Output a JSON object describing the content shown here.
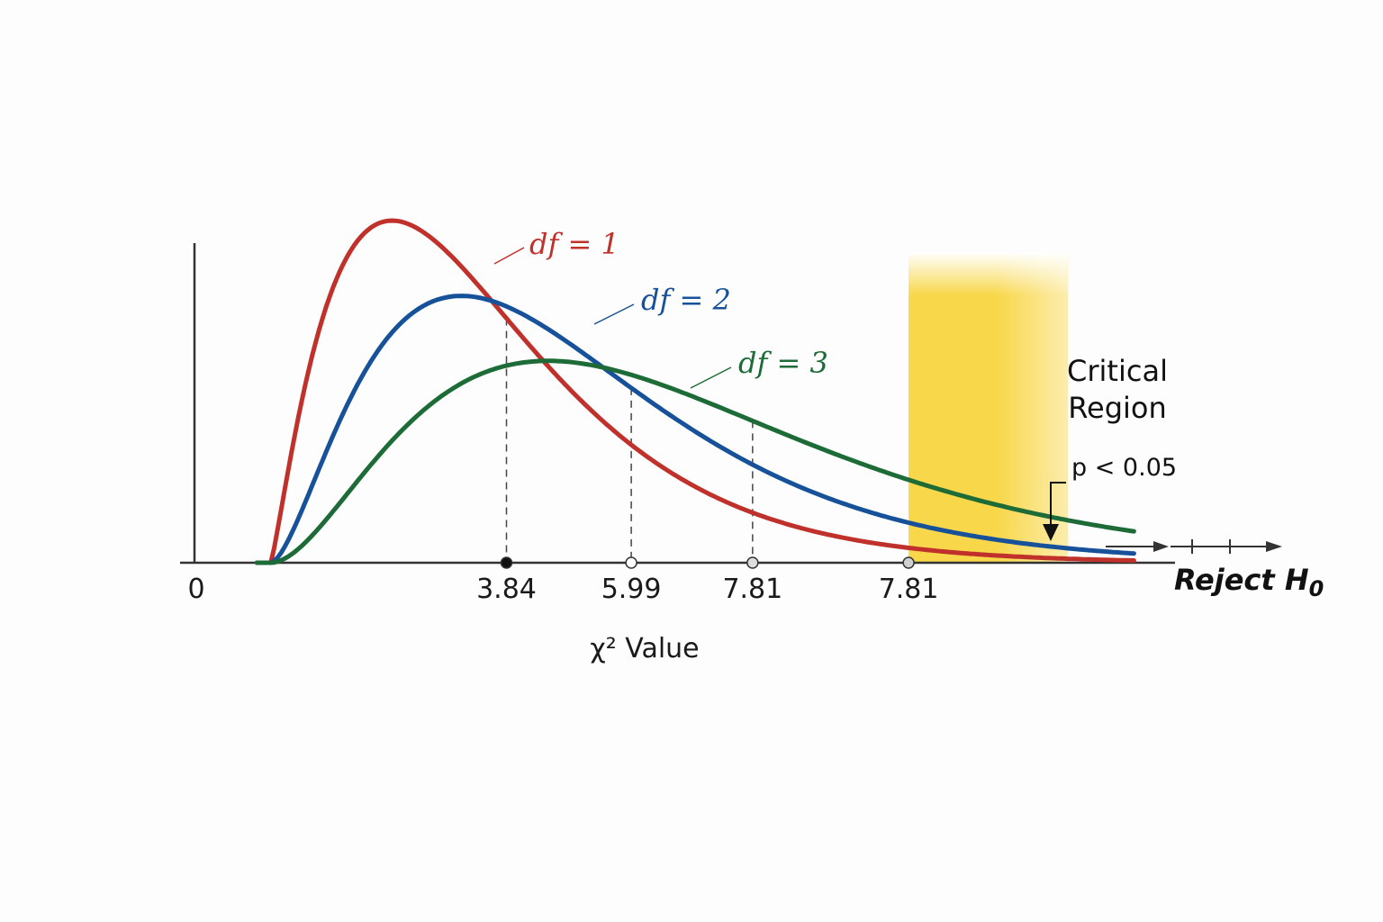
{
  "chart_data": {
    "type": "line",
    "title": "",
    "xlabel": "χ² Value",
    "ylabel": "",
    "x_origin_label": "0",
    "series": [
      {
        "name": "df = 1",
        "label": "df = 1",
        "color": "#c0312b",
        "peak_x": 2.85,
        "peak_density": 1.0,
        "spread": 1.45,
        "shape": 3.2
      },
      {
        "name": "df = 2",
        "label": "df = 2",
        "color": "#16519a",
        "peak_x": 3.85,
        "peak_density": 0.78,
        "spread": 1.65,
        "shape": 3.0
      },
      {
        "name": "df = 3",
        "label": "df = 3",
        "color": "#1d6b37",
        "peak_x": 5.1,
        "peak_density": 0.59,
        "spread": 2.1,
        "shape": 2.5
      }
    ],
    "critical_markers": [
      {
        "label": "3.84",
        "x": 4.5,
        "series": 0,
        "fill": "#111111"
      },
      {
        "label": "5.99",
        "x": 6.3,
        "series": 1,
        "fill": "#ffffff"
      },
      {
        "label": "7.81",
        "x": 8.05,
        "series": 2,
        "fill": "#dddddd"
      },
      {
        "label": "7.81",
        "x": 10.3,
        "series": null,
        "fill": "#cfcfcf"
      }
    ],
    "critical_region": {
      "title_line1": "Critical",
      "title_line2": "Region",
      "p_label": "p < 0.05",
      "x_start": 10.3,
      "x_end": 12.6,
      "color": "#f8d74a"
    },
    "reject_label_main": "Reject H",
    "reject_label_sub": "0",
    "xlim": [
      0,
      14
    ]
  }
}
